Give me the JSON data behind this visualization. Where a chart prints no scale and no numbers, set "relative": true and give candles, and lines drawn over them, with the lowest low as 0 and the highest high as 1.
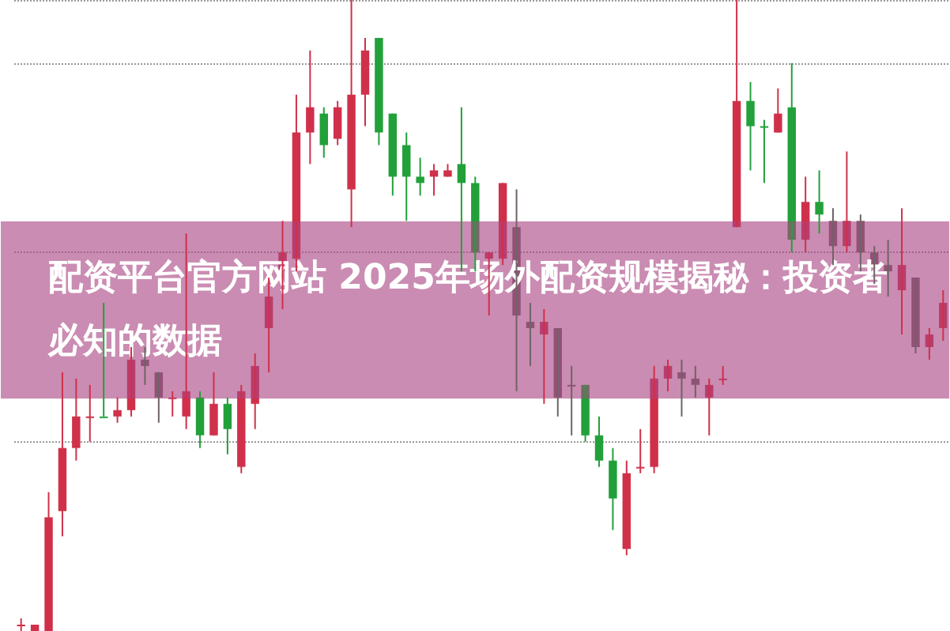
{
  "chart_data": {
    "type": "candlestick",
    "title": "配资平台官方网站 2025年场外配资规模揭秘：投资者必知的数据",
    "relative": true,
    "grid": "y",
    "categories": [
      null,
      null,
      null,
      null,
      null,
      null,
      null,
      null,
      null,
      null,
      null,
      null,
      null,
      null,
      null,
      null,
      null,
      null,
      null,
      null,
      null,
      null,
      null,
      null,
      null,
      null,
      null,
      null,
      null,
      null,
      null,
      null,
      null,
      null,
      null,
      null,
      null,
      null,
      null,
      null,
      null,
      null,
      null,
      null,
      null,
      null,
      null,
      null,
      null,
      null,
      null,
      null,
      null,
      null,
      null,
      null,
      null,
      null,
      null,
      null,
      null,
      null,
      null,
      null,
      null,
      null,
      null,
      null
    ],
    "ohlc": [
      [
        0.01,
        0.02,
        0,
        0.01
      ],
      [
        0,
        0.01,
        0,
        0.01
      ],
      [
        0,
        0.22,
        0,
        0.18
      ],
      [
        0.19,
        0.41,
        0.15,
        0.29
      ],
      [
        0.29,
        0.4,
        0.27,
        0.34
      ],
      [
        0.34,
        0.39,
        0.3,
        0.34
      ],
      [
        0.34,
        0.52,
        0.34,
        0.34
      ],
      [
        0.34,
        0.37,
        0.33,
        0.35
      ],
      [
        0.35,
        0.45,
        0.34,
        0.43
      ],
      [
        0.43,
        0.45,
        0.39,
        0.42
      ],
      [
        0.41,
        0.41,
        0.33,
        0.37
      ],
      [
        0.37,
        0.38,
        0.34,
        0.37
      ],
      [
        0.34,
        0.63,
        0.32,
        0.38
      ],
      [
        0.37,
        0.38,
        0.29,
        0.31
      ],
      [
        0.31,
        0.41,
        0.31,
        0.36
      ],
      [
        0.36,
        0.37,
        0.28,
        0.32
      ],
      [
        0.26,
        0.39,
        0.25,
        0.38
      ],
      [
        0.36,
        0.44,
        0.32,
        0.42
      ],
      [
        0.48,
        0.56,
        0.41,
        0.53
      ],
      [
        0.57,
        0.65,
        0.51,
        0.6
      ],
      [
        0.59,
        0.85,
        0.57,
        0.79
      ],
      [
        0.79,
        0.92,
        0.74,
        0.83
      ],
      [
        0.82,
        0.83,
        0.75,
        0.77
      ],
      [
        0.78,
        0.84,
        0.77,
        0.83
      ],
      [
        0.7,
        1.0,
        0.64,
        0.85
      ],
      [
        0.85,
        0.94,
        0.8,
        0.92
      ],
      [
        0.94,
        0.94,
        0.77,
        0.79
      ],
      [
        0.82,
        0.82,
        0.69,
        0.72
      ],
      [
        0.77,
        0.79,
        0.65,
        0.72
      ],
      [
        0.72,
        0.75,
        0.69,
        0.71
      ],
      [
        0.72,
        0.74,
        0.69,
        0.73
      ],
      [
        0.72,
        0.74,
        0.72,
        0.73
      ],
      [
        0.74,
        0.83,
        0.57,
        0.71
      ],
      [
        0.71,
        0.72,
        0.57,
        0.6
      ],
      [
        0.59,
        0.6,
        0.5,
        0.6
      ],
      [
        0.59,
        0.71,
        0.58,
        0.71
      ],
      [
        0.64,
        0.7,
        0.38,
        0.5
      ],
      [
        0.49,
        0.52,
        0.42,
        0.48
      ],
      [
        0.47,
        0.51,
        0.36,
        0.49
      ],
      [
        0.48,
        0.48,
        0.34,
        0.37
      ],
      [
        0.39,
        0.42,
        0.31,
        0.39
      ],
      [
        0.39,
        0.39,
        0.3,
        0.31
      ],
      [
        0.31,
        0.34,
        0.26,
        0.27
      ],
      [
        0.27,
        0.29,
        0.16,
        0.21
      ],
      [
        0.13,
        0.27,
        0.12,
        0.25
      ],
      [
        0.26,
        0.32,
        0.25,
        0.26
      ],
      [
        0.26,
        0.42,
        0.25,
        0.4
      ],
      [
        0.4,
        0.43,
        0.38,
        0.42
      ],
      [
        0.41,
        0.43,
        0.34,
        0.4
      ],
      [
        0.4,
        0.42,
        0.37,
        0.39
      ],
      [
        0.37,
        0.4,
        0.31,
        0.39
      ],
      [
        0.4,
        0.42,
        0.39,
        0.4
      ],
      [
        0.64,
        1.0,
        0.64,
        0.84
      ],
      [
        0.84,
        0.87,
        0.73,
        0.8
      ],
      [
        0.8,
        0.81,
        0.71,
        0.8
      ],
      [
        0.79,
        0.86,
        0.79,
        0.82
      ],
      [
        0.83,
        0.9,
        0.6,
        0.62
      ],
      [
        0.62,
        0.72,
        0.6,
        0.68
      ],
      [
        0.68,
        0.73,
        0.63,
        0.66
      ],
      [
        0.65,
        0.67,
        0.58,
        0.61
      ],
      [
        0.61,
        0.76,
        0.6,
        0.65
      ],
      [
        0.65,
        0.66,
        0.57,
        0.6
      ],
      [
        0.6,
        0.61,
        0.55,
        0.58
      ],
      [
        0.58,
        0.62,
        0.53,
        0.57
      ],
      [
        0.54,
        0.67,
        0.47,
        0.58
      ],
      [
        0.56,
        0.56,
        0.44,
        0.45
      ],
      [
        0.45,
        0.48,
        0.43,
        0.47
      ],
      [
        0.48,
        0.54,
        0.46,
        0.52
      ]
    ],
    "colors": [
      "#d0304a",
      "#d0304a",
      "#d0304a",
      "#d0304a",
      "#d0304a",
      "#d0304a",
      "#22a03a",
      "#d0304a",
      "#d0304a",
      "#6e6464",
      "#6e6464",
      "#d0304a",
      "#d0304a",
      "#22a03a",
      "#d0304a",
      "#22a03a",
      "#d0304a",
      "#d0304a",
      "#d0304a",
      "#d0304a",
      "#d0304a",
      "#d0304a",
      "#22a03a",
      "#d0304a",
      "#d0304a",
      "#d0304a",
      "#22a03a",
      "#22a03a",
      "#22a03a",
      "#22a03a",
      "#d0304a",
      "#d0304a",
      "#22a03a",
      "#22a03a",
      "#d0304a",
      "#d0304a",
      "#6e6464",
      "#6e6464",
      "#d0304a",
      "#6e6464",
      "#6e6464",
      "#22a03a",
      "#22a03a",
      "#22a03a",
      "#d0304a",
      "#d0304a",
      "#d0304a",
      "#d0304a",
      "#6e6464",
      "#6e6464",
      "#d0304a",
      "#d0304a",
      "#d0304a",
      "#22a03a",
      "#22a03a",
      "#d0304a",
      "#22a03a",
      "#d0304a",
      "#22a03a",
      "#6e6464",
      "#d0304a",
      "#6e6464",
      "#6e6464",
      "#6e6464",
      "#d0304a",
      "#6e6464",
      "#d0304a",
      "#d0304a"
    ]
  }
}
